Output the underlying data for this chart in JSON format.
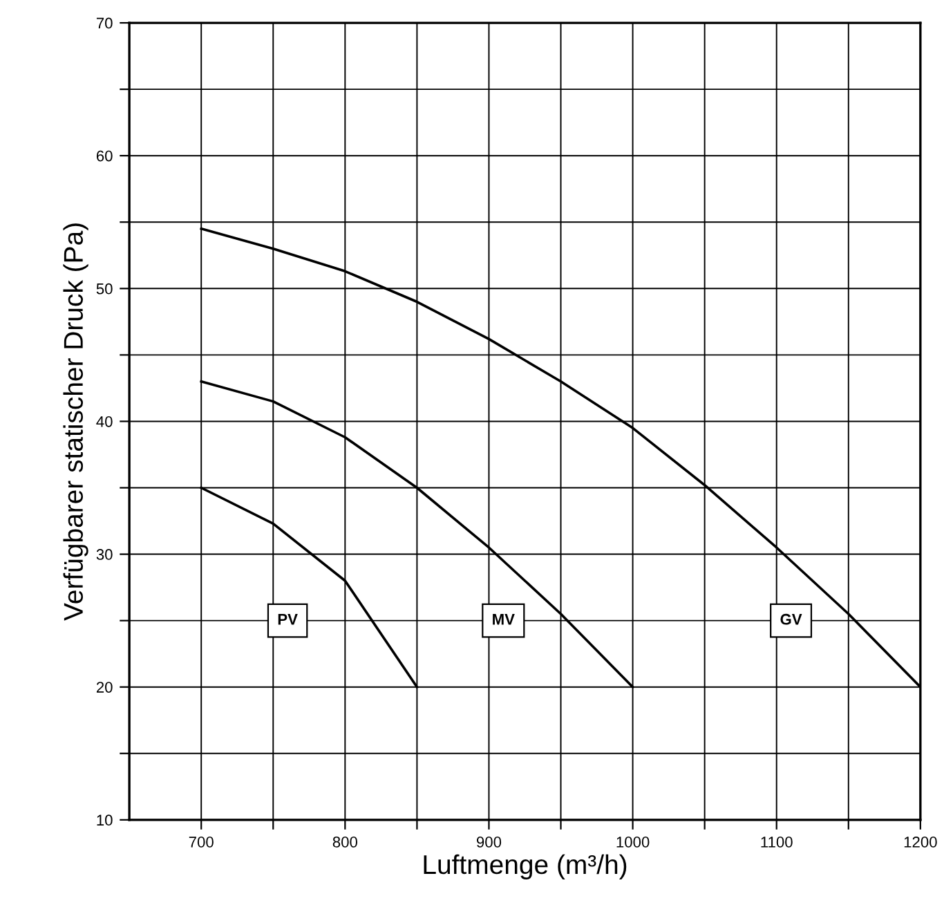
{
  "chart_data": {
    "type": "line",
    "xlabel": "Luftmenge (m³/h)",
    "ylabel": "Verfügbarer statischer Druck (Pa)",
    "xlim": [
      650,
      1200
    ],
    "ylim": [
      10,
      70
    ],
    "xticks": [
      700,
      {
        "value": 750,
        "label": null
      },
      800,
      {
        "value": 850,
        "label": null
      },
      900,
      {
        "value": 950,
        "label": null
      },
      1000,
      {
        "value": 1050,
        "label": null
      },
      1100,
      {
        "value": 1150,
        "label": null
      },
      1200
    ],
    "yticks": [
      10,
      {
        "value": 15,
        "label": null
      },
      20,
      {
        "value": 25,
        "label": null
      },
      30,
      {
        "value": 35,
        "label": null
      },
      40,
      {
        "value": 45,
        "label": null
      },
      50,
      {
        "value": 55,
        "label": null
      },
      60,
      {
        "value": 65,
        "label": null
      },
      70
    ],
    "grid": true,
    "marker": "none",
    "line_style": "solid",
    "legend": false,
    "series": [
      {
        "name": "PV",
        "color": "#000000",
        "x": [
          700,
          750,
          800,
          850
        ],
        "values": [
          35,
          32.3,
          28,
          20
        ]
      },
      {
        "name": "MV",
        "color": "#000000",
        "x": [
          700,
          750,
          800,
          850,
          900,
          950,
          1000
        ],
        "values": [
          43,
          41.5,
          38.8,
          35,
          30.5,
          25.5,
          20
        ]
      },
      {
        "name": "GV",
        "color": "#000000",
        "x": [
          700,
          750,
          800,
          850,
          900,
          950,
          1000,
          1050,
          1100,
          1150,
          1200
        ],
        "values": [
          54.5,
          53,
          51.3,
          49,
          46.2,
          43,
          39.5,
          35.2,
          30.5,
          25.5,
          20
        ]
      }
    ]
  }
}
